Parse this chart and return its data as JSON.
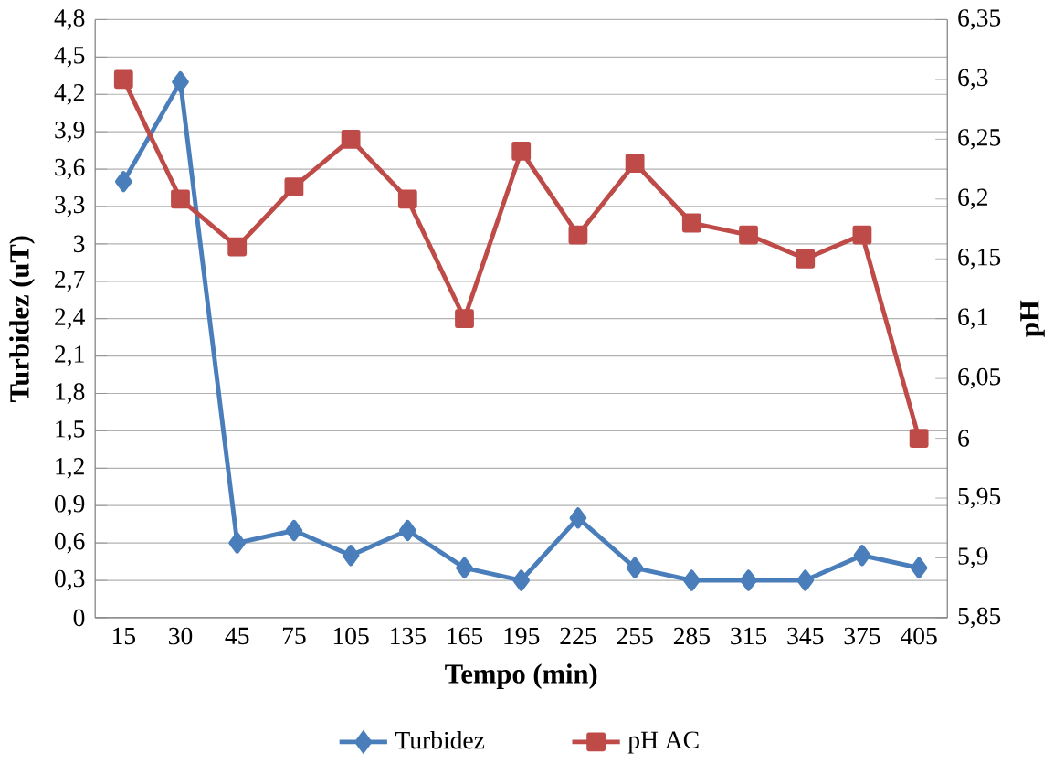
{
  "chart_data": {
    "type": "line",
    "xlabel": "Tempo (min)",
    "ylabel": "Turbidez (uT)",
    "y2label": "pH",
    "categories": [
      "15",
      "30",
      "45",
      "75",
      "105",
      "135",
      "165",
      "195",
      "225",
      "255",
      "285",
      "315",
      "345",
      "375",
      "405"
    ],
    "series": [
      {
        "name": "Turbidez",
        "color": "#4a7ebb",
        "marker": "diamond",
        "values": [
          3.5,
          4.3,
          0.6,
          0.7,
          0.5,
          0.7,
          0.4,
          0.3,
          0.8,
          0.4,
          0.3,
          0.3,
          0.3,
          0.5,
          0.4
        ]
      },
      {
        "name": "pH AC",
        "color": "#be4b48",
        "marker": "square",
        "axis": "y2",
        "values": [
          6.3,
          6.2,
          6.16,
          6.21,
          6.25,
          6.2,
          6.1,
          6.24,
          6.17,
          6.23,
          6.18,
          6.17,
          6.15,
          6.17,
          6.0
        ]
      }
    ],
    "ylim": [
      0,
      4.8
    ],
    "yticks": [
      0,
      {
        "value": 0.3,
        "label": "0,3"
      },
      {
        "value": 0.6,
        "label": "0,6"
      },
      {
        "value": 0.9,
        "label": "0,9"
      },
      {
        "value": 1.2,
        "label": "1,2"
      },
      {
        "value": 1.5,
        "label": "1,5"
      },
      {
        "value": 1.8,
        "label": "1,8"
      },
      {
        "value": 2.1,
        "label": "2,1"
      },
      {
        "value": 2.4,
        "label": "2,4"
      },
      {
        "value": 2.7,
        "label": "2,7"
      },
      3,
      {
        "value": 3.3,
        "label": "3,3"
      },
      {
        "value": 3.6,
        "label": "3,6"
      },
      {
        "value": 3.9,
        "label": "3,9"
      },
      {
        "value": 4.2,
        "label": "4,2"
      },
      {
        "value": 4.5,
        "label": "4,5"
      },
      {
        "value": 4.8,
        "label": "4,8"
      }
    ],
    "y2lim": [
      5.85,
      6.35
    ],
    "y2ticks": [
      {
        "value": 5.85,
        "label": "5,85"
      },
      {
        "value": 5.9,
        "label": "5,9"
      },
      {
        "value": 5.95,
        "label": "5,95"
      },
      6,
      {
        "value": 6.05,
        "label": "6,05"
      },
      {
        "value": 6.1,
        "label": "6,1"
      },
      {
        "value": 6.15,
        "label": "6,15"
      },
      {
        "value": 6.2,
        "label": "6,2"
      },
      {
        "value": 6.25,
        "label": "6,25"
      },
      {
        "value": 6.3,
        "label": "6,3"
      },
      {
        "value": 6.35,
        "label": "6,35"
      }
    ],
    "grid": "y",
    "legend": "bottom",
    "line_style": "solid"
  }
}
